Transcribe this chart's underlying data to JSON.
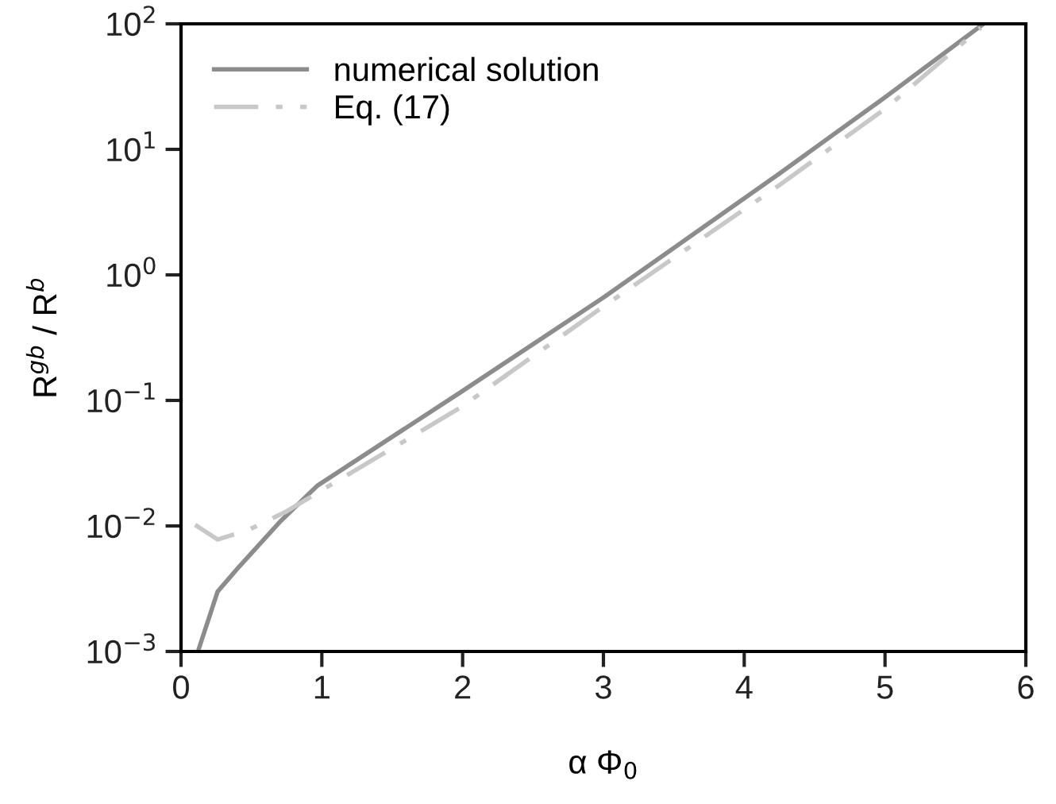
{
  "chart_data": {
    "type": "line",
    "xlabel": "α Φ$_{0}$",
    "ylabel": "R$^{gb}$ / R$^{b}$",
    "log": "y",
    "xlim": [
      0,
      6
    ],
    "xticks": [
      0,
      1,
      2,
      3,
      4,
      5,
      6
    ],
    "ylim": [
      0.001,
      100
    ],
    "yticks": [
      {
        "value": 0.001,
        "label": "10$^{−3}$"
      },
      {
        "value": 0.01,
        "label": "10$^{−2}$"
      },
      {
        "value": 0.1,
        "label": "10$^{−1}$"
      },
      {
        "value": 1,
        "label": "10$^{0}$"
      },
      {
        "value": 10,
        "label": "10$^{1}$"
      },
      {
        "value": 100,
        "label": "10$^{2}$"
      }
    ],
    "grid": false,
    "legend": "top left",
    "marker": "none",
    "series": [
      {
        "name": "numerical solution",
        "color": "#8c8c8c",
        "line_style": "solid",
        "x": [
          0.12,
          0.26,
          0.41,
          0.71,
          0.97,
          1.98,
          3,
          4.24,
          5,
          5.7
        ],
        "values": [
          0.001,
          0.003,
          0.0047,
          0.011,
          0.021,
          0.115,
          0.66,
          6.3,
          26,
          100
        ]
      },
      {
        "name": "Eq. (17)",
        "color": "#c8c8c8",
        "line_style": "dashdot",
        "x": [
          0.1,
          0.26,
          0.48,
          0.74,
          1.98,
          3,
          4.24,
          5,
          5.68
        ],
        "values": [
          0.0102,
          0.0078,
          0.0093,
          0.0129,
          0.087,
          0.56,
          5.1,
          21,
          93
        ]
      }
    ]
  }
}
